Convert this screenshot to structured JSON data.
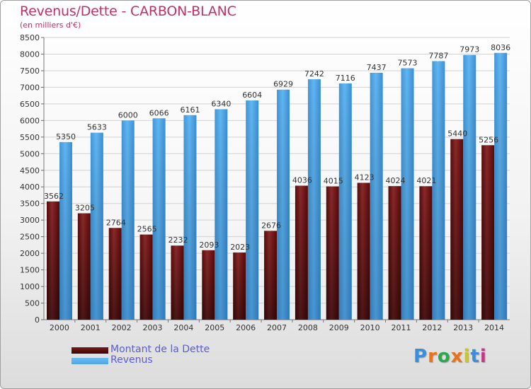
{
  "chart_data": {
    "type": "bar",
    "title": "Revenus/Dette - CARBON-BLANC",
    "subtitle": "(en milliers d'€)",
    "categories": [
      "2000",
      "2001",
      "2002",
      "2003",
      "2004",
      "2005",
      "2006",
      "2007",
      "2008",
      "2009",
      "2010",
      "2011",
      "2012",
      "2013",
      "2014"
    ],
    "series": [
      {
        "name": "Montant de la Dette",
        "color": "#7a1a1a",
        "values": [
          3562,
          3205,
          2764,
          2565,
          2232,
          2093,
          2023,
          2676,
          4036,
          4015,
          4123,
          4024,
          4021,
          5440,
          5256
        ],
        "labels": [
          "3562",
          "3205",
          "2764",
          "2565",
          "2232",
          "2093",
          "2023",
          "2676",
          "4036",
          "4015",
          "4123",
          "4024",
          "4021",
          "5440",
          "5256"
        ]
      },
      {
        "name": "Revenus",
        "color": "#4da6e8",
        "values": [
          5350,
          5633,
          6000,
          6066,
          6161,
          6340,
          6604,
          6929,
          7242,
          7116,
          7437,
          7573,
          7787,
          7973,
          8036
        ],
        "labels": [
          "5350",
          "5633",
          "6000",
          "6066",
          "6161",
          "6340",
          "6604",
          "6929",
          "7242",
          "7116",
          "7437",
          "7573",
          "7787",
          "7973",
          "8036"
        ]
      }
    ],
    "ylim": [
      0,
      8500
    ],
    "yticks": [
      0,
      500,
      1000,
      1500,
      2000,
      2500,
      3000,
      3500,
      4000,
      4500,
      5000,
      5500,
      6000,
      6500,
      7000,
      7500,
      8000,
      8500
    ],
    "grid": true,
    "legend": "bottom-left",
    "xlabel": "",
    "ylabel": ""
  },
  "legend": {
    "dette_label": "Montant de la Dette",
    "revenus_label": "Revenus",
    "dette_color": "#7a1a1a",
    "revenus_color": "#4da6e8"
  },
  "logo": {
    "letters": [
      "P",
      "r",
      "o",
      "x",
      "i",
      "t",
      "i"
    ],
    "colors": [
      "#3a8fd8",
      "#e8731a",
      "#2aa84a",
      "#e8731a",
      "#c8c820",
      "#3a8fd8",
      "#c03a8a"
    ]
  }
}
